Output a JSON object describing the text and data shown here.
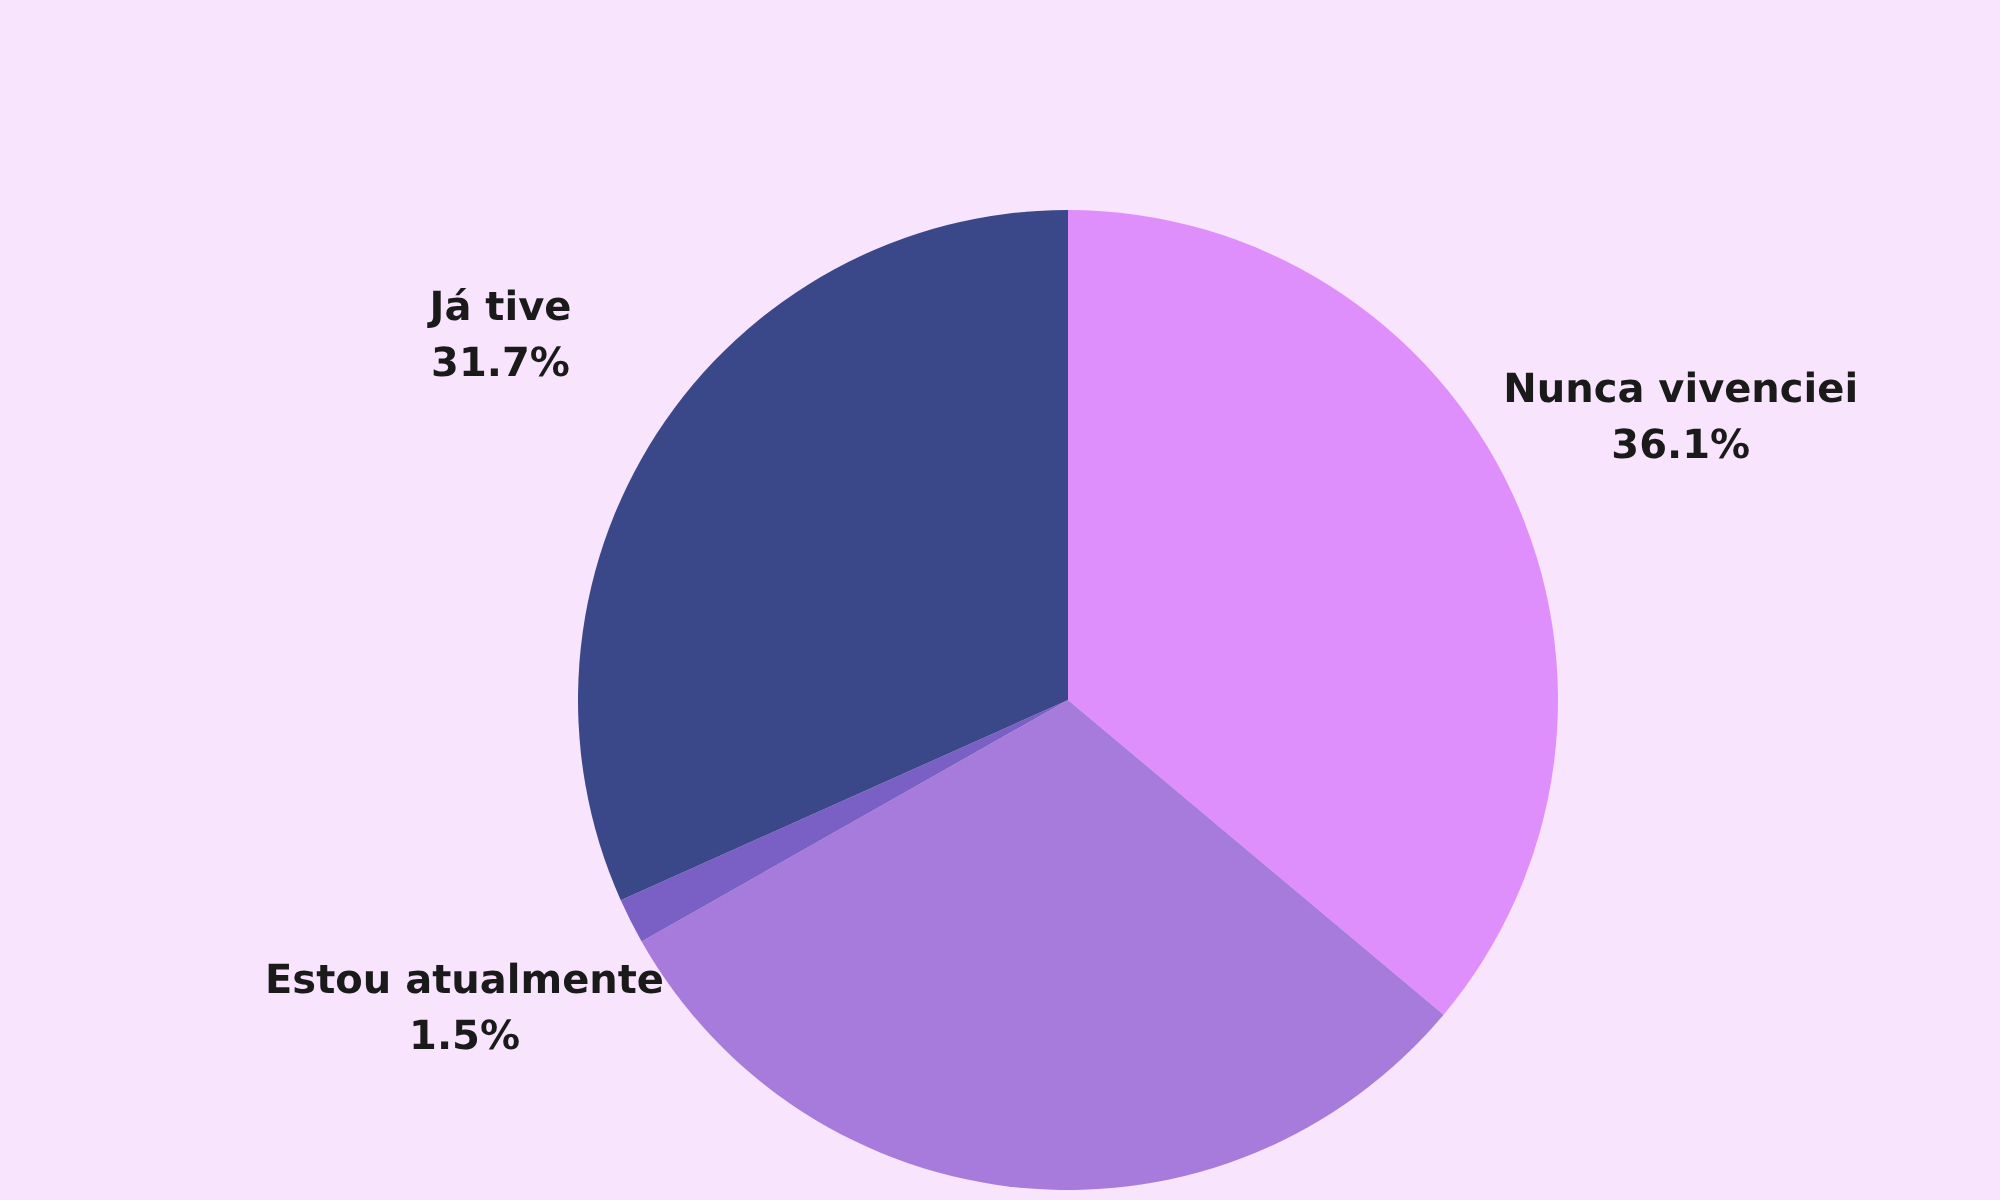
{
  "chart_data": {
    "type": "pie",
    "categories": [
      "Nunca vivenciei",
      null,
      "Estou atualmente",
      "Já tive"
    ],
    "values": [
      36.1,
      30.7,
      1.5,
      31.7
    ],
    "colors": [
      "#df8ffb",
      "#a67bdb",
      "#7a5fc4",
      "#3a4788"
    ],
    "value_labels": [
      "36.1%",
      null,
      "1.5%",
      "31.7%"
    ]
  }
}
